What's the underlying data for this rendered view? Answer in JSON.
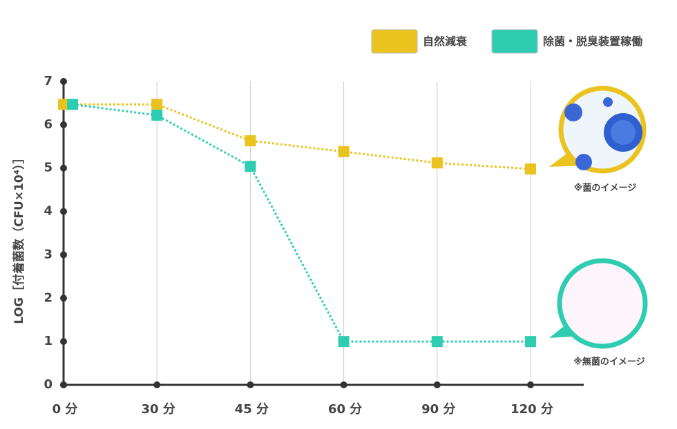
{
  "chart_data": {
    "type": "line",
    "y_label": "LOG［付着菌数（CFU×10⁴）］",
    "categories": [
      "0 分",
      "30 分",
      "45 分",
      "60 分",
      "90 分",
      "120 分"
    ],
    "series": [
      {
        "name": "自然減衰",
        "color": "#ebc31f",
        "values": [
          6.47,
          6.47,
          5.63,
          5.38,
          5.12,
          4.98
        ]
      },
      {
        "name": "除菌・脱臭装置稼働",
        "color": "#2ecdb1",
        "values": [
          6.47,
          6.22,
          5.04,
          1,
          1,
          1
        ]
      }
    ],
    "ylim": [
      0,
      7
    ],
    "yticks": [
      0,
      1,
      2,
      3,
      4,
      5,
      6,
      7
    ],
    "annotations": [
      "※菌のイメージ",
      "※無菌のイメージ"
    ]
  }
}
